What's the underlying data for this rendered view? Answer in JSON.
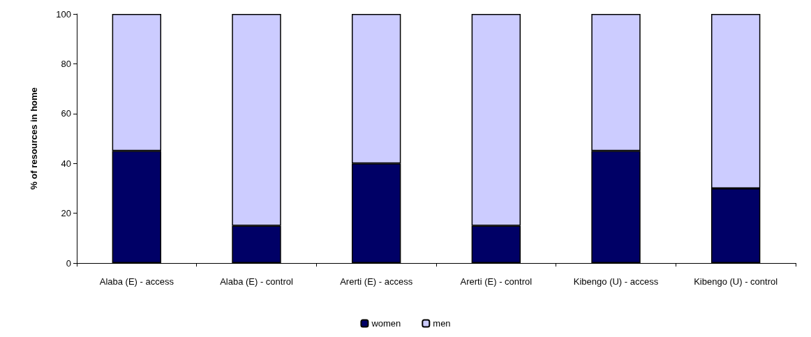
{
  "chart_data": {
    "type": "bar",
    "stacked": true,
    "ylabel": "% of resources in home",
    "categories": [
      "Alaba (E) - access",
      "Alaba (E) - control",
      "Arerti (E) - access",
      "Arerti (E) - control",
      "Kibengo (U) - access",
      "Kibengo (U) - control"
    ],
    "series": [
      {
        "name": "women",
        "color": "#000066",
        "values": [
          45,
          15,
          40,
          15,
          45,
          30
        ]
      },
      {
        "name": "men",
        "color": "#ccccff",
        "values": [
          55,
          85,
          60,
          85,
          55,
          70
        ]
      }
    ],
    "ylim": [
      0,
      100
    ],
    "yticks": [
      0,
      20,
      40,
      60,
      80,
      100
    ],
    "grid": false,
    "legend": "bottom"
  }
}
